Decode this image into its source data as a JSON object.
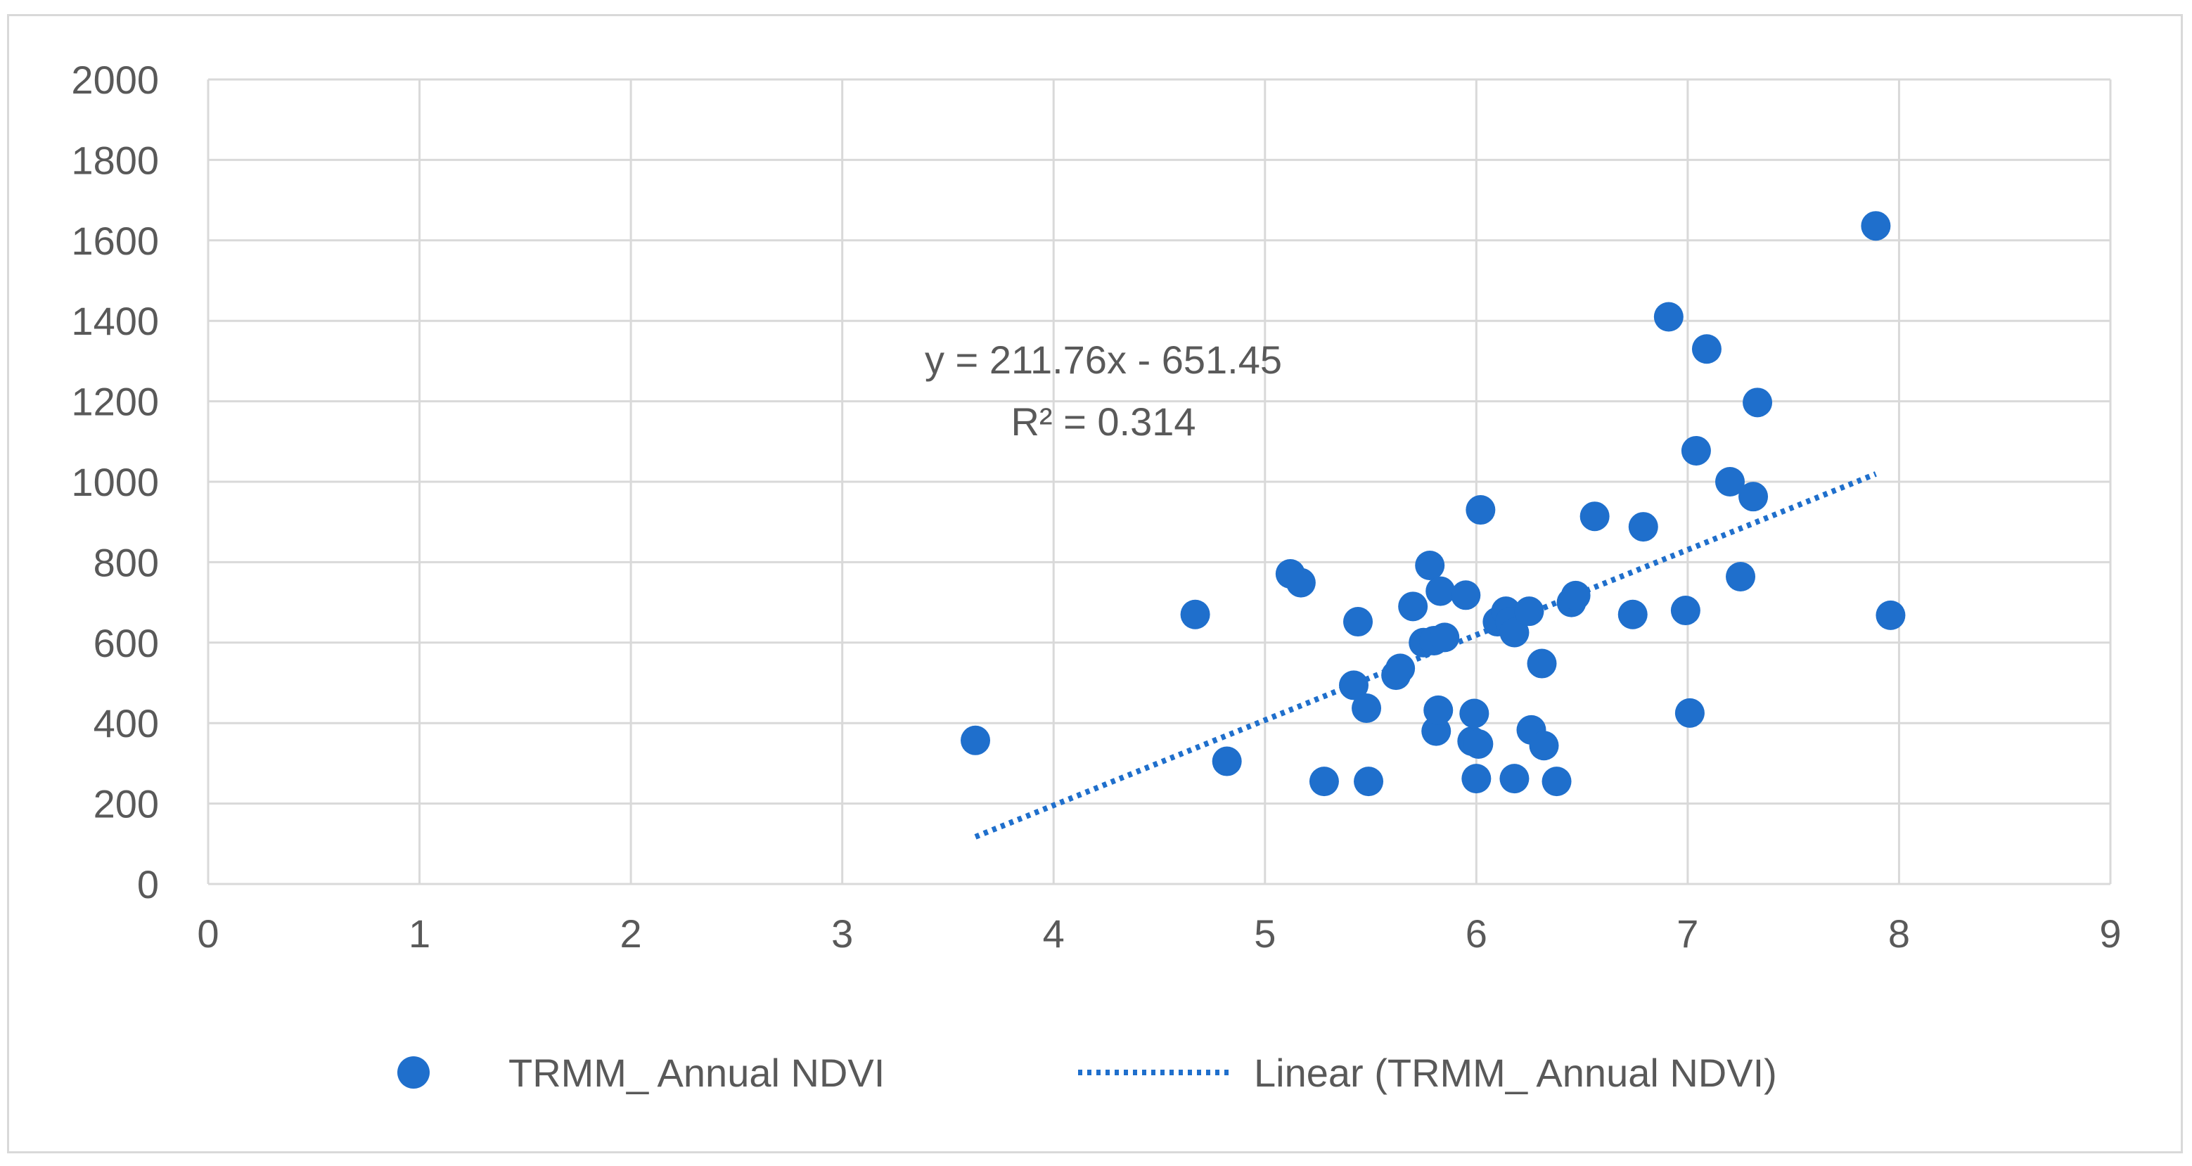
{
  "chart_data": {
    "type": "scatter",
    "xlim": [
      0,
      9
    ],
    "ylim": [
      0,
      2000
    ],
    "x_ticks": [
      0,
      1,
      2,
      3,
      4,
      5,
      6,
      7,
      8,
      9
    ],
    "y_ticks": [
      0,
      200,
      400,
      600,
      800,
      1000,
      1200,
      1400,
      1600,
      1800,
      2000
    ],
    "grid": true,
    "legend_position": "bottom",
    "colors": {
      "points": "#1f6fcc",
      "trendline": "#1f6fcc",
      "grid": "#d9d9d9",
      "text": "#595959"
    },
    "series": [
      {
        "name": "TRMM_ Annual NDVI",
        "points": [
          [
            3.63,
            357
          ],
          [
            4.67,
            670
          ],
          [
            4.82,
            305
          ],
          [
            5.12,
            771
          ],
          [
            5.17,
            749
          ],
          [
            5.28,
            255
          ],
          [
            5.42,
            494
          ],
          [
            5.44,
            652
          ],
          [
            5.48,
            437
          ],
          [
            5.49,
            255
          ],
          [
            5.62,
            519
          ],
          [
            5.64,
            536
          ],
          [
            5.7,
            690
          ],
          [
            5.75,
            600
          ],
          [
            5.78,
            792
          ],
          [
            5.8,
            605
          ],
          [
            5.81,
            380
          ],
          [
            5.82,
            432
          ],
          [
            5.83,
            728
          ],
          [
            5.85,
            613
          ],
          [
            5.95,
            718
          ],
          [
            5.98,
            355
          ],
          [
            5.99,
            424
          ],
          [
            6.0,
            262
          ],
          [
            6.01,
            348
          ],
          [
            6.02,
            930
          ],
          [
            6.1,
            652
          ],
          [
            6.14,
            678
          ],
          [
            6.16,
            652
          ],
          [
            6.18,
            625
          ],
          [
            6.18,
            262
          ],
          [
            6.25,
            678
          ],
          [
            6.26,
            383
          ],
          [
            6.31,
            548
          ],
          [
            6.32,
            344
          ],
          [
            6.38,
            255
          ],
          [
            6.45,
            700
          ],
          [
            6.47,
            717
          ],
          [
            6.56,
            914
          ],
          [
            6.74,
            670
          ],
          [
            6.79,
            888
          ],
          [
            6.91,
            1410
          ],
          [
            6.99,
            680
          ],
          [
            7.01,
            425
          ],
          [
            7.04,
            1077
          ],
          [
            7.09,
            1330
          ],
          [
            7.2,
            1000
          ],
          [
            7.25,
            764
          ],
          [
            7.31,
            963
          ],
          [
            7.33,
            1197
          ],
          [
            7.89,
            1636
          ],
          [
            7.96,
            668
          ]
        ]
      }
    ],
    "trendline": {
      "name": "Linear (TRMM_ Annual NDVI)",
      "slope": 211.76,
      "intercept": -651.45,
      "x_range": [
        3.63,
        7.89
      ],
      "equation": "y = 211.76x - 651.45",
      "r_squared": "R² = 0.314"
    }
  }
}
